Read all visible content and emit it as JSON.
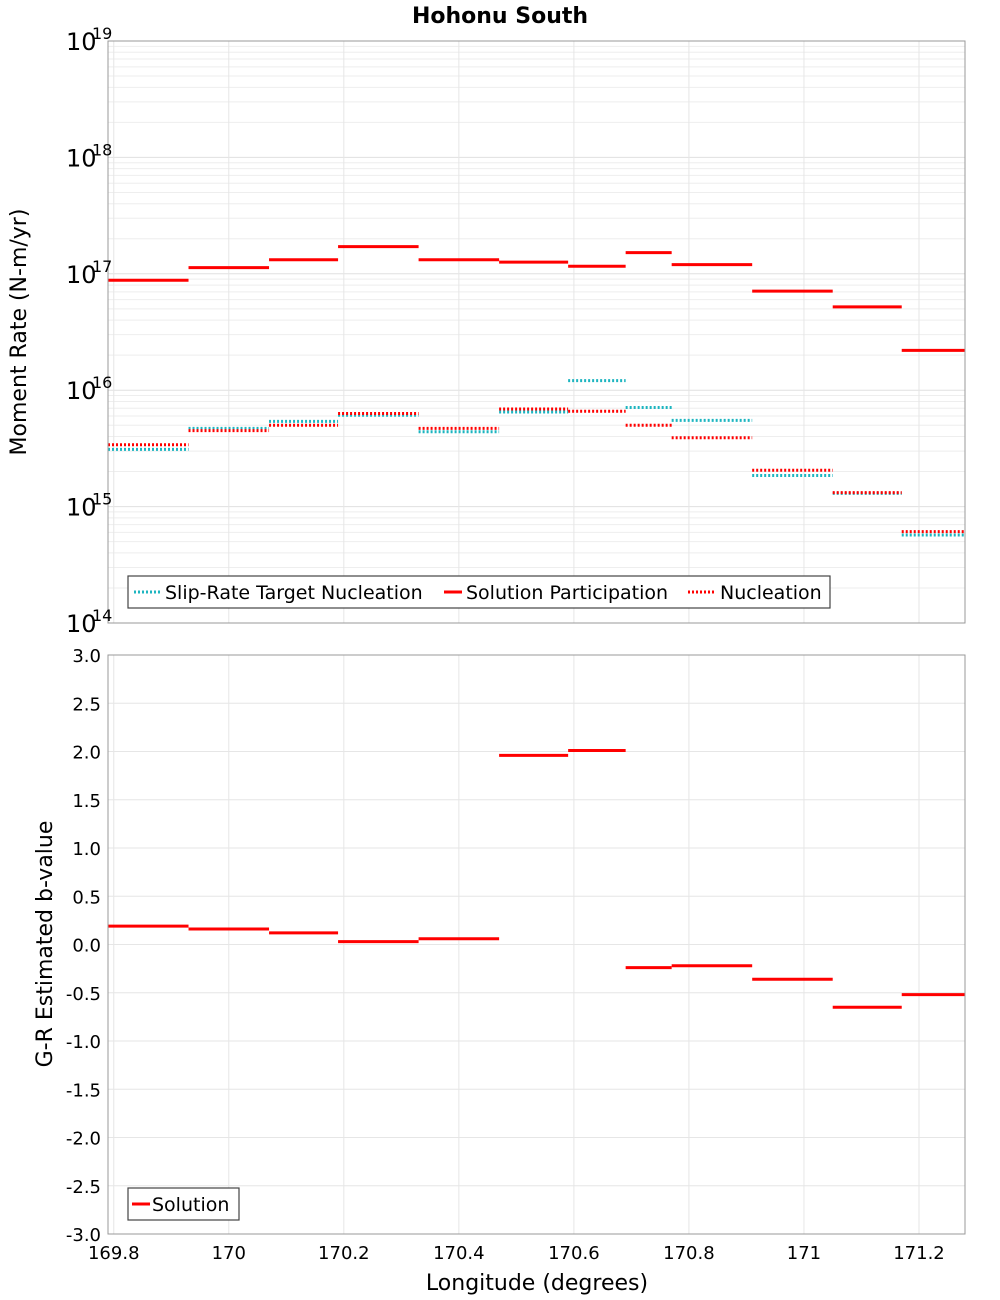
{
  "chart_data": {
    "title": "Hohonu South",
    "xlabel": "Longitude (degrees)",
    "xlim": [
      169.79,
      171.28
    ],
    "xticks": [
      {
        "value": 169.8,
        "label": "169.8"
      },
      {
        "value": 170.0,
        "label": "170"
      },
      {
        "value": 170.2,
        "label": "170.2"
      },
      {
        "value": 170.4,
        "label": "170.4"
      },
      {
        "value": 170.6,
        "label": "170.6"
      },
      {
        "value": 170.8,
        "label": "170.8"
      },
      {
        "value": 171.0,
        "label": "171"
      },
      {
        "value": 171.2,
        "label": "171.2"
      }
    ],
    "charts": [
      {
        "type": "line",
        "ylabel": "Moment Rate (N-m/yr)",
        "yscale": "log",
        "ylim": [
          100000000000000.0,
          1e+19
        ],
        "ytick_base": "10",
        "ytick_exponents": [
          "14",
          "15",
          "16",
          "17",
          "18",
          "19"
        ],
        "grid": true,
        "legend_position": "bottom-left",
        "series": [
          {
            "name": "Slip-Rate Target Nucleation",
            "style": "dotted",
            "color": "#1db5c0",
            "segments": [
              {
                "x0": 169.79,
                "x1": 169.93,
                "y": 3100000000000000.0
              },
              {
                "x0": 169.93,
                "x1": 170.07,
                "y": 4700000000000000.0
              },
              {
                "x0": 170.07,
                "x1": 170.19,
                "y": 5400000000000000.0
              },
              {
                "x0": 170.19,
                "x1": 170.33,
                "y": 6100000000000000.0
              },
              {
                "x0": 170.33,
                "x1": 170.47,
                "y": 4400000000000000.0
              },
              {
                "x0": 170.47,
                "x1": 170.59,
                "y": 6500000000000000.0
              },
              {
                "x0": 170.59,
                "x1": 170.69,
                "y": 1.21e+16
              },
              {
                "x0": 170.69,
                "x1": 170.77,
                "y": 7100000000000000.0
              },
              {
                "x0": 170.77,
                "x1": 170.91,
                "y": 5500000000000000.0
              },
              {
                "x0": 170.91,
                "x1": 171.05,
                "y": 1850000000000000.0
              },
              {
                "x0": 171.05,
                "x1": 171.17,
                "y": 1300000000000000.0
              },
              {
                "x0": 171.17,
                "x1": 171.28,
                "y": 570000000000000.0
              }
            ]
          },
          {
            "name": "Solution Participation",
            "style": "solid",
            "color": "#ff0000",
            "segments": [
              {
                "x0": 169.79,
                "x1": 169.93,
                "y": 8.8e+16
              },
              {
                "x0": 169.93,
                "x1": 170.07,
                "y": 1.13e+17
              },
              {
                "x0": 170.07,
                "x1": 170.19,
                "y": 1.32e+17
              },
              {
                "x0": 170.19,
                "x1": 170.33,
                "y": 1.71e+17
              },
              {
                "x0": 170.33,
                "x1": 170.47,
                "y": 1.32e+17
              },
              {
                "x0": 170.47,
                "x1": 170.59,
                "y": 1.26e+17
              },
              {
                "x0": 170.59,
                "x1": 170.69,
                "y": 1.16e+17
              },
              {
                "x0": 170.69,
                "x1": 170.77,
                "y": 1.52e+17
              },
              {
                "x0": 170.77,
                "x1": 170.91,
                "y": 1.2e+17
              },
              {
                "x0": 170.91,
                "x1": 171.05,
                "y": 7.1e+16
              },
              {
                "x0": 171.05,
                "x1": 171.17,
                "y": 5.2e+16
              },
              {
                "x0": 171.17,
                "x1": 171.28,
                "y": 2.2e+16
              }
            ]
          },
          {
            "name": "Nucleation",
            "style": "dotted",
            "color": "#ff0000",
            "segments": [
              {
                "x0": 169.79,
                "x1": 169.93,
                "y": 3400000000000000.0
              },
              {
                "x0": 169.93,
                "x1": 170.07,
                "y": 4500000000000000.0
              },
              {
                "x0": 170.07,
                "x1": 170.19,
                "y": 5000000000000000.0
              },
              {
                "x0": 170.19,
                "x1": 170.33,
                "y": 6300000000000000.0
              },
              {
                "x0": 170.33,
                "x1": 170.47,
                "y": 4700000000000000.0
              },
              {
                "x0": 170.47,
                "x1": 170.59,
                "y": 6900000000000000.0
              },
              {
                "x0": 170.59,
                "x1": 170.69,
                "y": 6600000000000000.0
              },
              {
                "x0": 170.69,
                "x1": 170.77,
                "y": 5000000000000000.0
              },
              {
                "x0": 170.77,
                "x1": 170.91,
                "y": 3900000000000000.0
              },
              {
                "x0": 170.91,
                "x1": 171.05,
                "y": 2050000000000000.0
              },
              {
                "x0": 171.05,
                "x1": 171.17,
                "y": 1320000000000000.0
              },
              {
                "x0": 171.17,
                "x1": 171.28,
                "y": 610000000000000.0
              }
            ]
          }
        ]
      },
      {
        "type": "line",
        "ylabel": "G-R Estimated b-value",
        "yscale": "linear",
        "ylim": [
          -3.0,
          3.0
        ],
        "yticks": [
          "3.0",
          "2.5",
          "2.0",
          "1.5",
          "1.0",
          "0.5",
          "0.0",
          "-0.5",
          "-1.0",
          "-1.5",
          "-2.0",
          "-2.5",
          "-3.0"
        ],
        "grid": true,
        "legend_position": "bottom-left",
        "series": [
          {
            "name": "Solution",
            "style": "solid",
            "color": "#ff0000",
            "segments": [
              {
                "x0": 169.79,
                "x1": 169.93,
                "y": 0.19
              },
              {
                "x0": 169.93,
                "x1": 170.07,
                "y": 0.16
              },
              {
                "x0": 170.07,
                "x1": 170.19,
                "y": 0.12
              },
              {
                "x0": 170.19,
                "x1": 170.33,
                "y": 0.03
              },
              {
                "x0": 170.33,
                "x1": 170.47,
                "y": 0.06
              },
              {
                "x0": 170.47,
                "x1": 170.59,
                "y": 1.96
              },
              {
                "x0": 170.59,
                "x1": 170.69,
                "y": 2.01
              },
              {
                "x0": 170.69,
                "x1": 170.77,
                "y": -0.24
              },
              {
                "x0": 170.77,
                "x1": 170.91,
                "y": -0.22
              },
              {
                "x0": 170.91,
                "x1": 171.05,
                "y": -0.36
              },
              {
                "x0": 171.05,
                "x1": 171.17,
                "y": -0.65
              },
              {
                "x0": 171.17,
                "x1": 171.28,
                "y": -0.52
              }
            ]
          }
        ]
      }
    ]
  }
}
